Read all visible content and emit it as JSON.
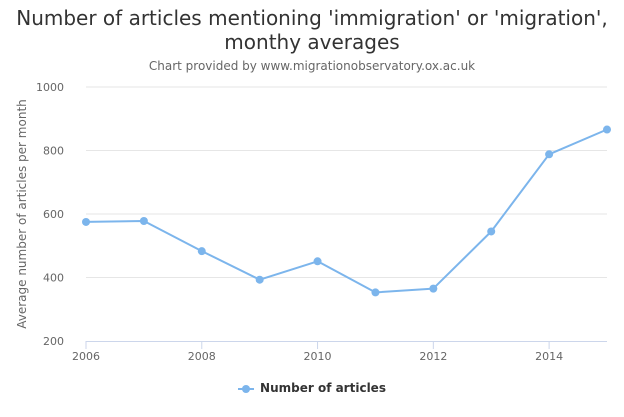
{
  "chart_data": {
    "type": "line",
    "title": "Number of articles mentioning 'immigration' or 'migration', monthy averages",
    "title_lines": [
      "Number of articles mentioning 'immigration' or 'migration',",
      "monthy averages"
    ],
    "subtitle": "Chart provided by www.migrationobservatory.ox.ac.uk",
    "xlabel": "",
    "ylabel": "Average number of articles per month",
    "x": [
      2006,
      2007,
      2008,
      2009,
      2010,
      2011,
      2012,
      2013,
      2014,
      2015
    ],
    "x_tick_labels": [
      "2006",
      "2008",
      "2010",
      "2012",
      "2014"
    ],
    "y_tick_labels": [
      "200",
      "400",
      "600",
      "800",
      "1000"
    ],
    "xlim": [
      2006,
      2015
    ],
    "ylim": [
      200,
      1000
    ],
    "series": [
      {
        "name": "Number of articles",
        "color": "#7cb5ec",
        "values": [
          575,
          578,
          483,
          393,
          451,
          353,
          365,
          545,
          788,
          866
        ]
      }
    ],
    "grid": {
      "y": true,
      "x": false
    },
    "legend": {
      "position": "bottom-center"
    }
  }
}
